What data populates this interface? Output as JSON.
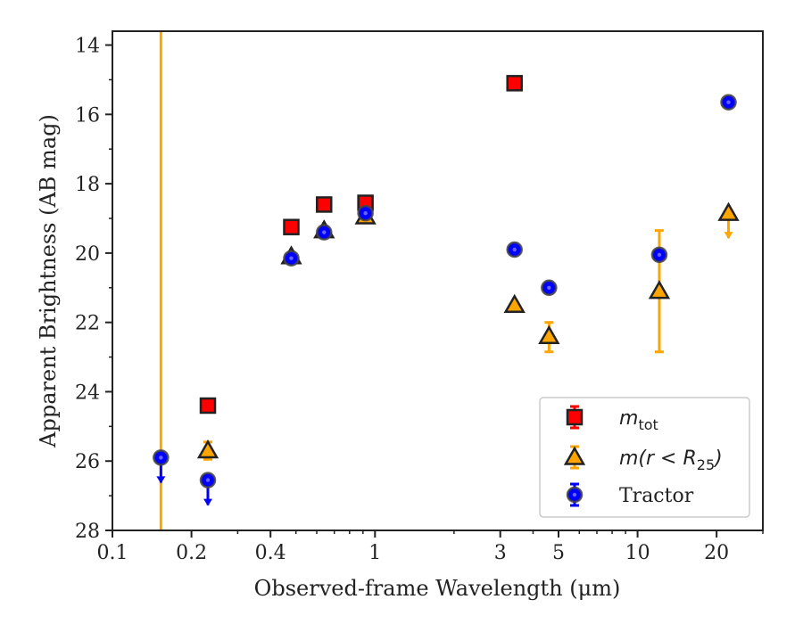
{
  "chart_data": {
    "type": "scatter",
    "title": "",
    "xlabel": "Observed-frame Wavelength (μm)",
    "ylabel": "Apparent Brightness (AB mag)",
    "xscale": "log",
    "xlim": [
      0.1,
      30
    ],
    "ylim": [
      28,
      13.6
    ],
    "y_inverted": true,
    "grid": false,
    "legend_position": "lower-right",
    "x_ticks": [
      {
        "value": 0.1,
        "label": "0.1"
      },
      {
        "value": 0.2,
        "label": "0.2"
      },
      {
        "value": 0.4,
        "label": "0.4"
      },
      {
        "value": 1,
        "label": "1"
      },
      {
        "value": 3,
        "label": "3"
      },
      {
        "value": 5,
        "label": "5"
      },
      {
        "value": 10,
        "label": "10"
      },
      {
        "value": 20,
        "label": "20"
      }
    ],
    "y_ticks": [
      {
        "value": 14,
        "label": "14"
      },
      {
        "value": 16,
        "label": "16"
      },
      {
        "value": 18,
        "label": "18"
      },
      {
        "value": 20,
        "label": "20"
      },
      {
        "value": 22,
        "label": "22"
      },
      {
        "value": 24,
        "label": "24"
      },
      {
        "value": 26,
        "label": "26"
      },
      {
        "value": 28,
        "label": "28"
      }
    ],
    "vertical_line": {
      "x": 0.153,
      "color": "#ffa500"
    },
    "series": [
      {
        "name": "m_tot",
        "marker": "square",
        "color": "#ff0000",
        "errcolor": "#ff0000",
        "points": [
          {
            "x": 0.231,
            "y": 24.4
          },
          {
            "x": 0.48,
            "y": 19.25
          },
          {
            "x": 0.64,
            "y": 18.6
          },
          {
            "x": 0.92,
            "y": 18.55
          },
          {
            "x": 3.4,
            "y": 15.1
          }
        ]
      },
      {
        "name": "m(r < R25)",
        "marker": "triangle",
        "color": "#ffa500",
        "errcolor": "#ffa500",
        "points": [
          {
            "x": 0.231,
            "y": 25.7,
            "err_lo": 0.25,
            "err_hi": 0.25
          },
          {
            "x": 0.48,
            "y": 20.1
          },
          {
            "x": 0.64,
            "y": 19.35
          },
          {
            "x": 0.92,
            "y": 18.95
          },
          {
            "x": 3.4,
            "y": 21.5
          },
          {
            "x": 4.6,
            "y": 22.4,
            "err_lo": 0.45,
            "err_hi": 0.4
          },
          {
            "x": 12.1,
            "y": 21.1,
            "err_lo": 1.75,
            "err_hi": 1.75
          },
          {
            "x": 22.2,
            "y": 18.85,
            "upper_limit": true
          }
        ]
      },
      {
        "name": "Tractor",
        "marker": "circle",
        "color": "#0000ff",
        "errcolor": "#0000ff",
        "points": [
          {
            "x": 0.153,
            "y": 25.9,
            "upper_limit": true
          },
          {
            "x": 0.231,
            "y": 26.55,
            "upper_limit": true
          },
          {
            "x": 0.48,
            "y": 20.15
          },
          {
            "x": 0.64,
            "y": 19.4
          },
          {
            "x": 0.92,
            "y": 18.85
          },
          {
            "x": 3.4,
            "y": 19.9
          },
          {
            "x": 4.6,
            "y": 21.0
          },
          {
            "x": 12.1,
            "y": 20.05
          },
          {
            "x": 22.2,
            "y": 15.65
          }
        ]
      }
    ],
    "legend": [
      {
        "series": "m_tot",
        "label_main": "m",
        "label_sub": "tot"
      },
      {
        "series": "m(r < R25)",
        "label_main": "m(r < R",
        "label_sub": "25",
        "label_tail": ")"
      },
      {
        "series": "Tractor",
        "label_main": "Tractor"
      }
    ]
  }
}
